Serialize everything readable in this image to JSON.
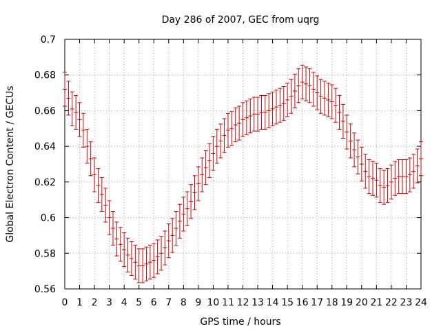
{
  "chart_data": {
    "type": "errorbar",
    "title": "Day 286 of 2007, GEC from uqrg",
    "xlabel": "GPS time / hours",
    "ylabel": "Global Electron Content / GECUs",
    "xlim": [
      0,
      24
    ],
    "ylim": [
      0.56,
      0.7
    ],
    "xticks": [
      0,
      1,
      2,
      3,
      4,
      5,
      6,
      7,
      8,
      9,
      10,
      11,
      12,
      13,
      14,
      15,
      16,
      17,
      18,
      19,
      20,
      21,
      22,
      23,
      24
    ],
    "yticks": [
      0.56,
      0.58,
      0.6,
      0.62,
      0.64,
      0.66,
      0.68,
      0.7
    ],
    "ytick_labels": [
      "0.56",
      "0.58",
      "0.6",
      "0.62",
      "0.64",
      "0.66",
      "0.68",
      "0.7"
    ],
    "grid": true,
    "color": "#cc0000",
    "error": 0.0095,
    "x": [
      0,
      0.25,
      0.5,
      0.75,
      1,
      1.25,
      1.5,
      1.75,
      2,
      2.25,
      2.5,
      2.75,
      3,
      3.25,
      3.5,
      3.75,
      4,
      4.25,
      4.5,
      4.75,
      5,
      5.25,
      5.5,
      5.75,
      6,
      6.25,
      6.5,
      6.75,
      7,
      7.25,
      7.5,
      7.75,
      8,
      8.25,
      8.5,
      8.75,
      9,
      9.25,
      9.5,
      9.75,
      10,
      10.25,
      10.5,
      10.75,
      11,
      11.25,
      11.5,
      11.75,
      12,
      12.25,
      12.5,
      12.75,
      13,
      13.25,
      13.5,
      13.75,
      14,
      14.25,
      14.5,
      14.75,
      15,
      15.25,
      15.5,
      15.75,
      16,
      16.25,
      16.5,
      16.75,
      17,
      17.25,
      17.5,
      17.75,
      18,
      18.25,
      18.5,
      18.75,
      19,
      19.25,
      19.5,
      19.75,
      20,
      20.25,
      20.5,
      20.75,
      21,
      21.25,
      21.5,
      21.75,
      22,
      22.25,
      22.5,
      22.75,
      23,
      23.25,
      23.5,
      23.75,
      24
    ],
    "y": [
      0.672,
      0.667,
      0.661,
      0.659,
      0.655,
      0.649,
      0.64,
      0.633,
      0.624,
      0.618,
      0.613,
      0.607,
      0.6,
      0.594,
      0.588,
      0.585,
      0.582,
      0.579,
      0.577,
      0.575,
      0.573,
      0.573,
      0.574,
      0.575,
      0.576,
      0.578,
      0.58,
      0.583,
      0.587,
      0.59,
      0.594,
      0.598,
      0.602,
      0.605,
      0.609,
      0.614,
      0.619,
      0.624,
      0.628,
      0.632,
      0.636,
      0.64,
      0.643,
      0.646,
      0.649,
      0.65,
      0.652,
      0.653,
      0.655,
      0.656,
      0.657,
      0.658,
      0.658,
      0.659,
      0.659,
      0.66,
      0.661,
      0.662,
      0.663,
      0.664,
      0.666,
      0.668,
      0.671,
      0.674,
      0.676,
      0.675,
      0.674,
      0.672,
      0.67,
      0.668,
      0.667,
      0.666,
      0.665,
      0.663,
      0.659,
      0.654,
      0.648,
      0.643,
      0.638,
      0.634,
      0.63,
      0.626,
      0.623,
      0.622,
      0.621,
      0.618,
      0.617,
      0.618,
      0.62,
      0.622,
      0.623,
      0.623,
      0.623,
      0.624,
      0.626,
      0.629,
      0.633
    ]
  }
}
